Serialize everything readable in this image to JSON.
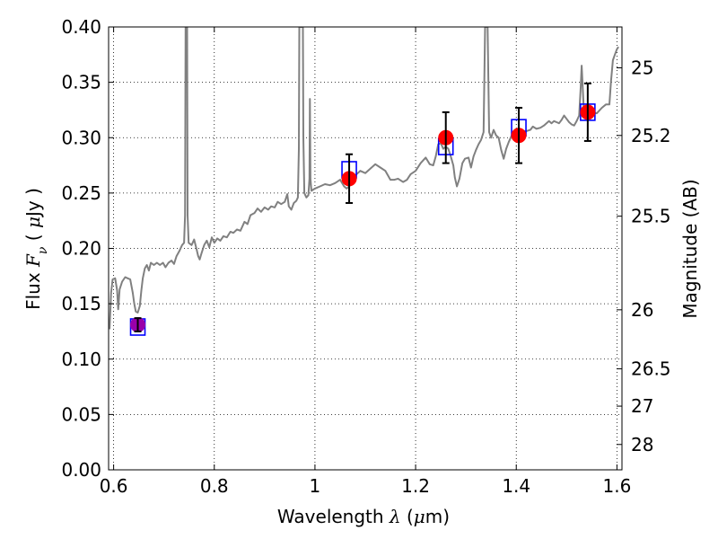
{
  "chart_data": {
    "type": "scatter",
    "xlim": [
      0.59,
      1.61
    ],
    "ylim": [
      0.0,
      0.4
    ],
    "x_ticks": [
      {
        "value": 0.6,
        "label": "0.6"
      },
      {
        "value": 0.8,
        "label": "0.8"
      },
      {
        "value": 1.0,
        "label": "1"
      },
      {
        "value": 1.2,
        "label": "1.2"
      },
      {
        "value": 1.4,
        "label": "1.4"
      },
      {
        "value": 1.6,
        "label": "1.6"
      }
    ],
    "y_ticks": [
      {
        "value": 0.0,
        "label": "0.00"
      },
      {
        "value": 0.05,
        "label": "0.05"
      },
      {
        "value": 0.1,
        "label": "0.10"
      },
      {
        "value": 0.15,
        "label": "0.15"
      },
      {
        "value": 0.2,
        "label": "0.20"
      },
      {
        "value": 0.25,
        "label": "0.25"
      },
      {
        "value": 0.3,
        "label": "0.30"
      },
      {
        "value": 0.35,
        "label": "0.35"
      },
      {
        "value": 0.4,
        "label": "0.40"
      }
    ],
    "right_axis": {
      "label": "Magnitude (AB)",
      "ticks": [
        {
          "value": 25,
          "label": "25"
        },
        {
          "value": 25.2,
          "label": "25.2"
        },
        {
          "value": 25.5,
          "label": "25.5"
        },
        {
          "value": 26,
          "label": "26"
        },
        {
          "value": 26.5,
          "label": "26.5"
        },
        {
          "value": 27,
          "label": "27"
        },
        {
          "value": 28,
          "label": "28"
        }
      ]
    },
    "xlabel": {
      "pre": "Wavelength  ",
      "sym": "λ",
      "post": " (",
      "unit_sym": "μ",
      "unit": "m)"
    },
    "ylabel": {
      "pre": "Flux  ",
      "sym": "F",
      "sub": "ν",
      "post": "  ( ",
      "unit_sym": "μ",
      "unit": "Jy )"
    },
    "grid": true,
    "series": [
      {
        "type": "line",
        "color": "#808080",
        "points": [
          [
            0.592,
            0.127
          ],
          [
            0.595,
            0.16
          ],
          [
            0.598,
            0.172
          ],
          [
            0.603,
            0.173
          ],
          [
            0.607,
            0.162
          ],
          [
            0.609,
            0.145
          ],
          [
            0.612,
            0.163
          ],
          [
            0.617,
            0.17
          ],
          [
            0.623,
            0.174
          ],
          [
            0.628,
            0.173
          ],
          [
            0.633,
            0.172
          ],
          [
            0.638,
            0.16
          ],
          [
            0.641,
            0.15
          ],
          [
            0.644,
            0.143
          ],
          [
            0.648,
            0.142
          ],
          [
            0.652,
            0.148
          ],
          [
            0.655,
            0.162
          ],
          [
            0.658,
            0.173
          ],
          [
            0.662,
            0.182
          ],
          [
            0.666,
            0.185
          ],
          [
            0.67,
            0.18
          ],
          [
            0.674,
            0.187
          ],
          [
            0.68,
            0.185
          ],
          [
            0.686,
            0.187
          ],
          [
            0.692,
            0.185
          ],
          [
            0.698,
            0.187
          ],
          [
            0.703,
            0.183
          ],
          [
            0.709,
            0.187
          ],
          [
            0.715,
            0.189
          ],
          [
            0.72,
            0.186
          ],
          [
            0.725,
            0.193
          ],
          [
            0.731,
            0.198
          ],
          [
            0.736,
            0.203
          ],
          [
            0.74,
            0.205
          ],
          [
            0.742,
            0.23
          ],
          [
            0.743,
            0.4
          ],
          [
            0.746,
            0.4
          ],
          [
            0.747,
            0.23
          ],
          [
            0.749,
            0.205
          ],
          [
            0.755,
            0.203
          ],
          [
            0.76,
            0.208
          ],
          [
            0.765,
            0.199
          ],
          [
            0.768,
            0.193
          ],
          [
            0.771,
            0.19
          ],
          [
            0.775,
            0.196
          ],
          [
            0.78,
            0.203
          ],
          [
            0.785,
            0.207
          ],
          [
            0.79,
            0.201
          ],
          [
            0.795,
            0.21
          ],
          [
            0.8,
            0.205
          ],
          [
            0.806,
            0.209
          ],
          [
            0.812,
            0.207
          ],
          [
            0.818,
            0.211
          ],
          [
            0.825,
            0.21
          ],
          [
            0.832,
            0.215
          ],
          [
            0.838,
            0.214
          ],
          [
            0.845,
            0.217
          ],
          [
            0.852,
            0.216
          ],
          [
            0.86,
            0.224
          ],
          [
            0.866,
            0.222
          ],
          [
            0.872,
            0.23
          ],
          [
            0.88,
            0.232
          ],
          [
            0.886,
            0.236
          ],
          [
            0.893,
            0.233
          ],
          [
            0.9,
            0.237
          ],
          [
            0.907,
            0.235
          ],
          [
            0.913,
            0.238
          ],
          [
            0.92,
            0.237
          ],
          [
            0.926,
            0.242
          ],
          [
            0.933,
            0.24
          ],
          [
            0.94,
            0.242
          ],
          [
            0.945,
            0.249
          ],
          [
            0.948,
            0.238
          ],
          [
            0.953,
            0.235
          ],
          [
            0.958,
            0.241
          ],
          [
            0.963,
            0.243
          ],
          [
            0.966,
            0.246
          ],
          [
            0.968,
            0.29
          ],
          [
            0.969,
            0.4
          ],
          [
            0.976,
            0.4
          ],
          [
            0.977,
            0.3
          ],
          [
            0.979,
            0.25
          ],
          [
            0.983,
            0.246
          ],
          [
            0.987,
            0.248
          ],
          [
            0.989,
            0.263
          ],
          [
            0.99,
            0.335
          ],
          [
            0.991,
            0.263
          ],
          [
            0.993,
            0.252
          ],
          [
            1.0,
            0.254
          ],
          [
            1.01,
            0.256
          ],
          [
            1.02,
            0.258
          ],
          [
            1.03,
            0.257
          ],
          [
            1.04,
            0.259
          ],
          [
            1.05,
            0.262
          ],
          [
            1.058,
            0.256
          ],
          [
            1.063,
            0.254
          ],
          [
            1.068,
            0.256
          ],
          [
            1.073,
            0.261
          ],
          [
            1.08,
            0.266
          ],
          [
            1.09,
            0.27
          ],
          [
            1.1,
            0.268
          ],
          [
            1.11,
            0.272
          ],
          [
            1.12,
            0.276
          ],
          [
            1.13,
            0.273
          ],
          [
            1.14,
            0.27
          ],
          [
            1.15,
            0.262
          ],
          [
            1.158,
            0.262
          ],
          [
            1.165,
            0.263
          ],
          [
            1.175,
            0.26
          ],
          [
            1.183,
            0.262
          ],
          [
            1.19,
            0.267
          ],
          [
            1.2,
            0.27
          ],
          [
            1.21,
            0.277
          ],
          [
            1.22,
            0.282
          ],
          [
            1.228,
            0.276
          ],
          [
            1.235,
            0.275
          ],
          [
            1.24,
            0.283
          ],
          [
            1.245,
            0.294
          ],
          [
            1.25,
            0.295
          ],
          [
            1.255,
            0.29
          ],
          [
            1.26,
            0.292
          ],
          [
            1.265,
            0.29
          ],
          [
            1.27,
            0.283
          ],
          [
            1.275,
            0.275
          ],
          [
            1.278,
            0.264
          ],
          [
            1.282,
            0.256
          ],
          [
            1.287,
            0.263
          ],
          [
            1.293,
            0.277
          ],
          [
            1.298,
            0.281
          ],
          [
            1.305,
            0.282
          ],
          [
            1.31,
            0.273
          ],
          [
            1.315,
            0.283
          ],
          [
            1.32,
            0.289
          ],
          [
            1.325,
            0.294
          ],
          [
            1.33,
            0.298
          ],
          [
            1.335,
            0.305
          ],
          [
            1.338,
            0.4
          ],
          [
            1.343,
            0.4
          ],
          [
            1.346,
            0.305
          ],
          [
            1.35,
            0.3
          ],
          [
            1.355,
            0.307
          ],
          [
            1.36,
            0.302
          ],
          [
            1.365,
            0.3
          ],
          [
            1.37,
            0.289
          ],
          [
            1.375,
            0.281
          ],
          [
            1.38,
            0.29
          ],
          [
            1.385,
            0.296
          ],
          [
            1.39,
            0.301
          ],
          [
            1.395,
            0.305
          ],
          [
            1.402,
            0.303
          ],
          [
            1.408,
            0.307
          ],
          [
            1.415,
            0.306
          ],
          [
            1.42,
            0.306
          ],
          [
            1.428,
            0.307
          ],
          [
            1.433,
            0.31
          ],
          [
            1.44,
            0.308
          ],
          [
            1.448,
            0.309
          ],
          [
            1.455,
            0.311
          ],
          [
            1.46,
            0.313
          ],
          [
            1.465,
            0.315
          ],
          [
            1.47,
            0.313
          ],
          [
            1.475,
            0.315
          ],
          [
            1.48,
            0.314
          ],
          [
            1.485,
            0.313
          ],
          [
            1.49,
            0.316
          ],
          [
            1.495,
            0.32
          ],
          [
            1.5,
            0.317
          ],
          [
            1.505,
            0.314
          ],
          [
            1.51,
            0.312
          ],
          [
            1.515,
            0.311
          ],
          [
            1.52,
            0.315
          ],
          [
            1.525,
            0.32
          ],
          [
            1.528,
            0.345
          ],
          [
            1.53,
            0.365
          ],
          [
            1.532,
            0.345
          ],
          [
            1.534,
            0.326
          ],
          [
            1.54,
            0.322
          ],
          [
            1.55,
            0.323
          ],
          [
            1.56,
            0.322
          ],
          [
            1.57,
            0.327
          ],
          [
            1.578,
            0.33
          ],
          [
            1.585,
            0.33
          ],
          [
            1.588,
            0.35
          ],
          [
            1.592,
            0.37
          ],
          [
            1.596,
            0.375
          ],
          [
            1.6,
            0.38
          ],
          [
            1.603,
            0.382
          ]
        ]
      },
      {
        "type": "markers",
        "marker": "square",
        "color": "#0000ff",
        "points": [
          {
            "x": 0.648,
            "y": 0.129
          },
          {
            "x": 1.068,
            "y": 0.271
          },
          {
            "x": 1.26,
            "y": 0.292
          },
          {
            "x": 1.405,
            "y": 0.309
          },
          {
            "x": 1.542,
            "y": 0.323
          }
        ]
      },
      {
        "type": "errorbar",
        "marker": "circle",
        "points": [
          {
            "x": 0.648,
            "y": 0.131,
            "yerr": 0.006,
            "color": "#9900aa"
          },
          {
            "x": 1.068,
            "y": 0.263,
            "yerr": 0.022,
            "color": "#ff0000"
          },
          {
            "x": 1.26,
            "y": 0.3,
            "yerr": 0.023,
            "color": "#ff0000"
          },
          {
            "x": 1.405,
            "y": 0.302,
            "yerr": 0.025,
            "color": "#ff0000"
          },
          {
            "x": 1.542,
            "y": 0.323,
            "yerr": 0.026,
            "color": "#ff0000"
          }
        ]
      }
    ]
  }
}
